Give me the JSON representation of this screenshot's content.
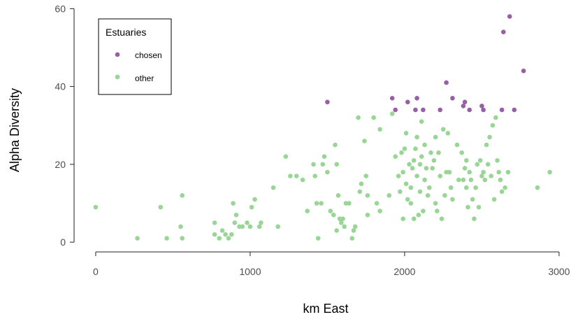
{
  "chart_data": {
    "type": "scatter",
    "xlabel": "km East",
    "ylabel": "Alpha Diversity",
    "xlim": [
      -140,
      3100
    ],
    "ylim": [
      -2.5,
      61.5
    ],
    "xticks": [
      0,
      1000,
      2000,
      3000
    ],
    "yticks": [
      0,
      20,
      40,
      60
    ],
    "grid": false,
    "legend": {
      "title": "Estuaries",
      "placement": "top-left",
      "entries": [
        {
          "label": "chosen",
          "color": "#9a5ea6"
        },
        {
          "label": "other",
          "color": "#99d594"
        }
      ]
    },
    "series": [
      {
        "name": "chosen",
        "color": "#9a5ea6",
        "points": [
          [
            1500,
            36
          ],
          [
            1920,
            37
          ],
          [
            1940,
            34
          ],
          [
            2020,
            36
          ],
          [
            2080,
            37
          ],
          [
            2070,
            34
          ],
          [
            2120,
            34
          ],
          [
            2230,
            34
          ],
          [
            2270,
            41
          ],
          [
            2310,
            37
          ],
          [
            2380,
            35
          ],
          [
            2390,
            36
          ],
          [
            2420,
            34
          ],
          [
            2500,
            35
          ],
          [
            2510,
            34
          ],
          [
            2630,
            34
          ],
          [
            2640,
            54
          ],
          [
            2680,
            58
          ],
          [
            2710,
            34
          ],
          [
            2770,
            44
          ]
        ]
      },
      {
        "name": "other",
        "color": "#99d594",
        "points": [
          [
            0,
            9
          ],
          [
            270,
            1
          ],
          [
            420,
            9
          ],
          [
            460,
            1
          ],
          [
            550,
            4
          ],
          [
            560,
            12
          ],
          [
            560,
            1
          ],
          [
            770,
            2
          ],
          [
            770,
            5
          ],
          [
            800,
            1
          ],
          [
            820,
            3
          ],
          [
            840,
            2
          ],
          [
            860,
            1
          ],
          [
            880,
            2
          ],
          [
            890,
            10
          ],
          [
            900,
            5
          ],
          [
            910,
            7
          ],
          [
            930,
            4
          ],
          [
            950,
            4
          ],
          [
            980,
            5
          ],
          [
            1000,
            4
          ],
          [
            1010,
            9
          ],
          [
            1030,
            11
          ],
          [
            1060,
            4
          ],
          [
            1070,
            5
          ],
          [
            1150,
            14
          ],
          [
            1180,
            4
          ],
          [
            1230,
            22
          ],
          [
            1260,
            17
          ],
          [
            1300,
            17
          ],
          [
            1340,
            16
          ],
          [
            1370,
            8
          ],
          [
            1410,
            20
          ],
          [
            1420,
            17
          ],
          [
            1430,
            10
          ],
          [
            1440,
            1
          ],
          [
            1460,
            10
          ],
          [
            1470,
            20
          ],
          [
            1480,
            22
          ],
          [
            1500,
            18
          ],
          [
            1520,
            8
          ],
          [
            1540,
            7
          ],
          [
            1550,
            25
          ],
          [
            1560,
            20
          ],
          [
            1560,
            3
          ],
          [
            1570,
            12
          ],
          [
            1580,
            6
          ],
          [
            1590,
            5
          ],
          [
            1600,
            6
          ],
          [
            1610,
            4
          ],
          [
            1620,
            10
          ],
          [
            1640,
            10
          ],
          [
            1660,
            1
          ],
          [
            1670,
            3
          ],
          [
            1680,
            4
          ],
          [
            1700,
            32
          ],
          [
            1710,
            13
          ],
          [
            1720,
            15
          ],
          [
            1740,
            26
          ],
          [
            1750,
            17
          ],
          [
            1760,
            12
          ],
          [
            1760,
            7
          ],
          [
            1800,
            32
          ],
          [
            1820,
            10
          ],
          [
            1840,
            29
          ],
          [
            1840,
            8
          ],
          [
            1900,
            12
          ],
          [
            1920,
            33
          ],
          [
            1940,
            22
          ],
          [
            1960,
            17
          ],
          [
            1970,
            13
          ],
          [
            1980,
            23
          ],
          [
            1990,
            18
          ],
          [
            1990,
            6
          ],
          [
            2000,
            24
          ],
          [
            2010,
            15
          ],
          [
            2010,
            28
          ],
          [
            2020,
            11
          ],
          [
            2030,
            20
          ],
          [
            2040,
            14
          ],
          [
            2040,
            10
          ],
          [
            2050,
            19
          ],
          [
            2060,
            21
          ],
          [
            2060,
            6
          ],
          [
            2070,
            24
          ],
          [
            2080,
            27
          ],
          [
            2080,
            17
          ],
          [
            2090,
            7
          ],
          [
            2100,
            13
          ],
          [
            2100,
            20
          ],
          [
            2110,
            22
          ],
          [
            2110,
            31
          ],
          [
            2120,
            8
          ],
          [
            2130,
            25
          ],
          [
            2130,
            16
          ],
          [
            2140,
            19
          ],
          [
            2150,
            12
          ],
          [
            2160,
            14
          ],
          [
            2170,
            23
          ],
          [
            2180,
            19
          ],
          [
            2190,
            21
          ],
          [
            2200,
            27
          ],
          [
            2200,
            10
          ],
          [
            2210,
            8
          ],
          [
            2220,
            23
          ],
          [
            2230,
            17
          ],
          [
            2240,
            6
          ],
          [
            2250,
            29
          ],
          [
            2260,
            12
          ],
          [
            2270,
            18
          ],
          [
            2280,
            28
          ],
          [
            2290,
            18
          ],
          [
            2300,
            14
          ],
          [
            2310,
            11
          ],
          [
            2340,
            25
          ],
          [
            2350,
            16
          ],
          [
            2370,
            23
          ],
          [
            2380,
            16
          ],
          [
            2390,
            19
          ],
          [
            2400,
            21
          ],
          [
            2400,
            14
          ],
          [
            2410,
            9
          ],
          [
            2420,
            18
          ],
          [
            2430,
            16
          ],
          [
            2440,
            11
          ],
          [
            2450,
            6
          ],
          [
            2460,
            14
          ],
          [
            2470,
            20
          ],
          [
            2480,
            9
          ],
          [
            2490,
            21
          ],
          [
            2500,
            17
          ],
          [
            2510,
            18
          ],
          [
            2520,
            16
          ],
          [
            2530,
            25
          ],
          [
            2540,
            20
          ],
          [
            2550,
            27
          ],
          [
            2560,
            17
          ],
          [
            2570,
            30
          ],
          [
            2580,
            11
          ],
          [
            2590,
            32
          ],
          [
            2600,
            21
          ],
          [
            2610,
            18
          ],
          [
            2620,
            16
          ],
          [
            2630,
            13
          ],
          [
            2650,
            14
          ],
          [
            2670,
            18
          ],
          [
            2860,
            14
          ],
          [
            2940,
            18
          ]
        ]
      }
    ]
  }
}
